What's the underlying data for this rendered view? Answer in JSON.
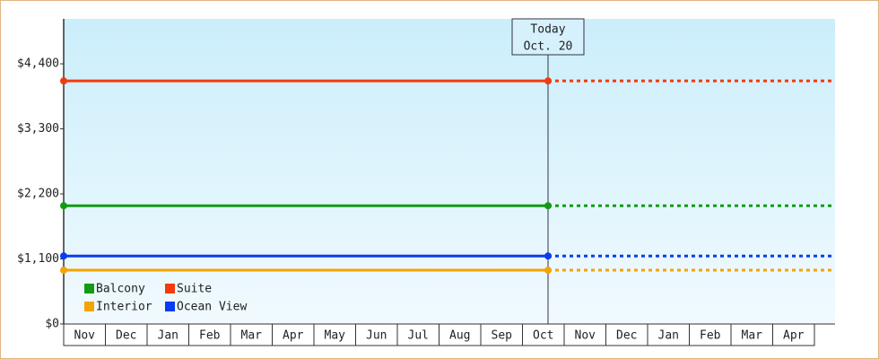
{
  "chart_data": {
    "type": "line",
    "categories": [
      "Nov",
      "Dec",
      "Jan",
      "Feb",
      "Mar",
      "Apr",
      "May",
      "Jun",
      "Jul",
      "Aug",
      "Sep",
      "Oct",
      "Nov",
      "Dec",
      "Jan",
      "Feb",
      "Mar",
      "Apr"
    ],
    "today": {
      "label": "Today",
      "date": "Oct. 20"
    },
    "series": [
      {
        "name": "Balcony",
        "color": "#129b12",
        "values": [
          2000,
          2000,
          2000,
          2000,
          2000,
          2000,
          2000,
          2000,
          2000,
          2000,
          2000,
          2000,
          2000,
          2000,
          2000,
          2000,
          2000,
          2000
        ]
      },
      {
        "name": "Suite",
        "color": "#f23a0c",
        "values": [
          4110,
          4110,
          4110,
          4110,
          4110,
          4110,
          4110,
          4110,
          4110,
          4110,
          4110,
          4110,
          4110,
          4110,
          4110,
          4110,
          4110,
          4110
        ]
      },
      {
        "name": "Interior",
        "color": "#f4a300",
        "values": [
          910,
          910,
          910,
          910,
          910,
          910,
          910,
          910,
          910,
          910,
          910,
          910,
          910,
          910,
          910,
          910,
          910,
          910
        ]
      },
      {
        "name": "Ocean View",
        "color": "#0a3cf2",
        "values": [
          1150,
          1150,
          1150,
          1150,
          1150,
          1150,
          1150,
          1150,
          1150,
          1150,
          1150,
          1150,
          1150,
          1150,
          1150,
          1150,
          1150,
          1150
        ]
      }
    ],
    "ylim": [
      0,
      5160
    ],
    "yticks": [
      {
        "value": 0,
        "label": "$0"
      },
      {
        "value": 1100,
        "label": "$1,100"
      },
      {
        "value": 2200,
        "label": "$2,200"
      },
      {
        "value": 3300,
        "label": "$3,300"
      },
      {
        "value": 4400,
        "label": "$4,400"
      }
    ],
    "legend": "bottom-left"
  }
}
